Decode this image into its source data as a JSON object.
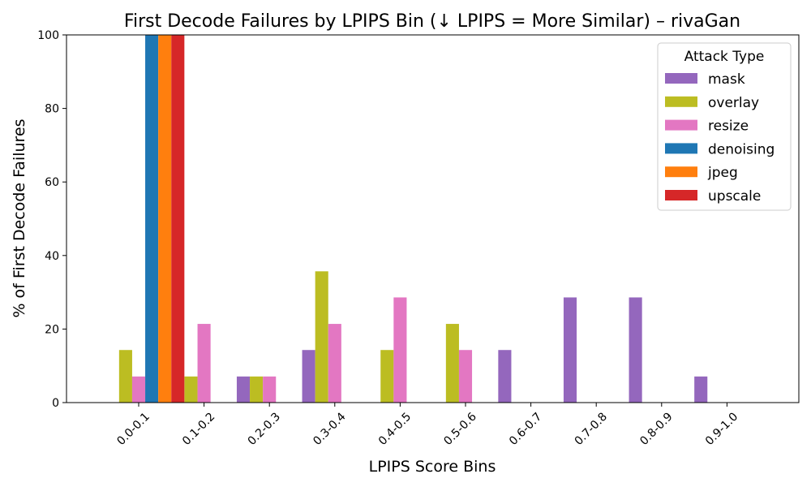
{
  "chart_data": {
    "type": "bar",
    "title": "First Decode Failures by LPIPS Bin (↓ LPIPS = More Similar) – rivaGan",
    "xlabel": "LPIPS Score Bins",
    "ylabel": "% of First Decode Failures",
    "ylim": [
      0,
      100
    ],
    "yticks": [
      0,
      20,
      40,
      60,
      80,
      100
    ],
    "grid": false,
    "legend_title": "Attack Type",
    "legend_position": "top-right",
    "categories": [
      "0.0-0.1",
      "0.1-0.2",
      "0.2-0.3",
      "0.3-0.4",
      "0.4-0.5",
      "0.5-0.6",
      "0.6-0.7",
      "0.7-0.8",
      "0.8-0.9",
      "0.9-1.0"
    ],
    "series": [
      {
        "name": "mask",
        "color": "#9467bd",
        "values": [
          0,
          0,
          7.1,
          14.3,
          0,
          0,
          14.3,
          28.6,
          28.6,
          7.1
        ]
      },
      {
        "name": "overlay",
        "color": "#bcbd22",
        "values": [
          14.3,
          7.1,
          7.1,
          35.7,
          14.3,
          21.4,
          0,
          0,
          0,
          0
        ]
      },
      {
        "name": "resize",
        "color": "#e377c2",
        "values": [
          7.1,
          21.4,
          7.1,
          21.4,
          28.6,
          14.3,
          0,
          0,
          0,
          0
        ]
      },
      {
        "name": "denoising",
        "color": "#1f77b4",
        "values": [
          100,
          0,
          0,
          0,
          0,
          0,
          0,
          0,
          0,
          0
        ]
      },
      {
        "name": "jpeg",
        "color": "#ff7f0e",
        "values": [
          100,
          0,
          0,
          0,
          0,
          0,
          0,
          0,
          0,
          0
        ]
      },
      {
        "name": "upscale",
        "color": "#d62728",
        "values": [
          100,
          0,
          0,
          0,
          0,
          0,
          0,
          0,
          0,
          0
        ]
      }
    ]
  }
}
